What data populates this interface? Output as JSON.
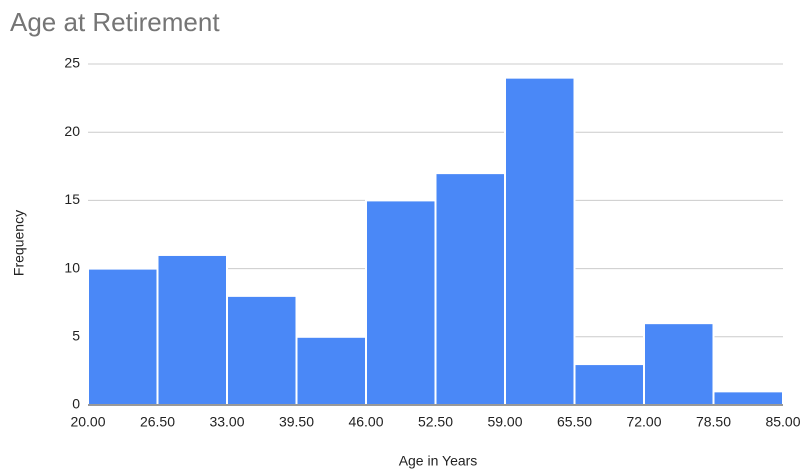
{
  "chart_data": {
    "type": "histogram",
    "title": "Age at Retirement",
    "x_label": "Age in Years",
    "y_label": "Frequency",
    "bins": [
      20,
      26.5,
      33,
      39.5,
      46,
      52.5,
      59,
      65.5,
      72,
      78.5,
      85
    ],
    "counts": [
      10,
      11,
      8,
      5,
      15,
      17,
      24,
      3,
      6,
      1
    ],
    "color": "#4a88f7",
    "xlim": [
      20,
      85
    ],
    "xticks": [
      {
        "value": 20,
        "label": "20.00"
      },
      {
        "value": 26.5,
        "label": "26.50"
      },
      {
        "value": 33,
        "label": "33.00"
      },
      {
        "value": 39.5,
        "label": "39.50"
      },
      {
        "value": 46,
        "label": "46.00"
      },
      {
        "value": 52.5,
        "label": "52.50"
      },
      {
        "value": 59,
        "label": "59.00"
      },
      {
        "value": 65.5,
        "label": "65.50"
      },
      {
        "value": 72,
        "label": "72.00"
      },
      {
        "value": 78.5,
        "label": "78.50"
      },
      {
        "value": 85,
        "label": "85.00"
      }
    ],
    "ylim": [
      0,
      25
    ],
    "yticks": [
      0,
      5,
      10,
      15,
      20,
      25
    ],
    "grid": true
  }
}
